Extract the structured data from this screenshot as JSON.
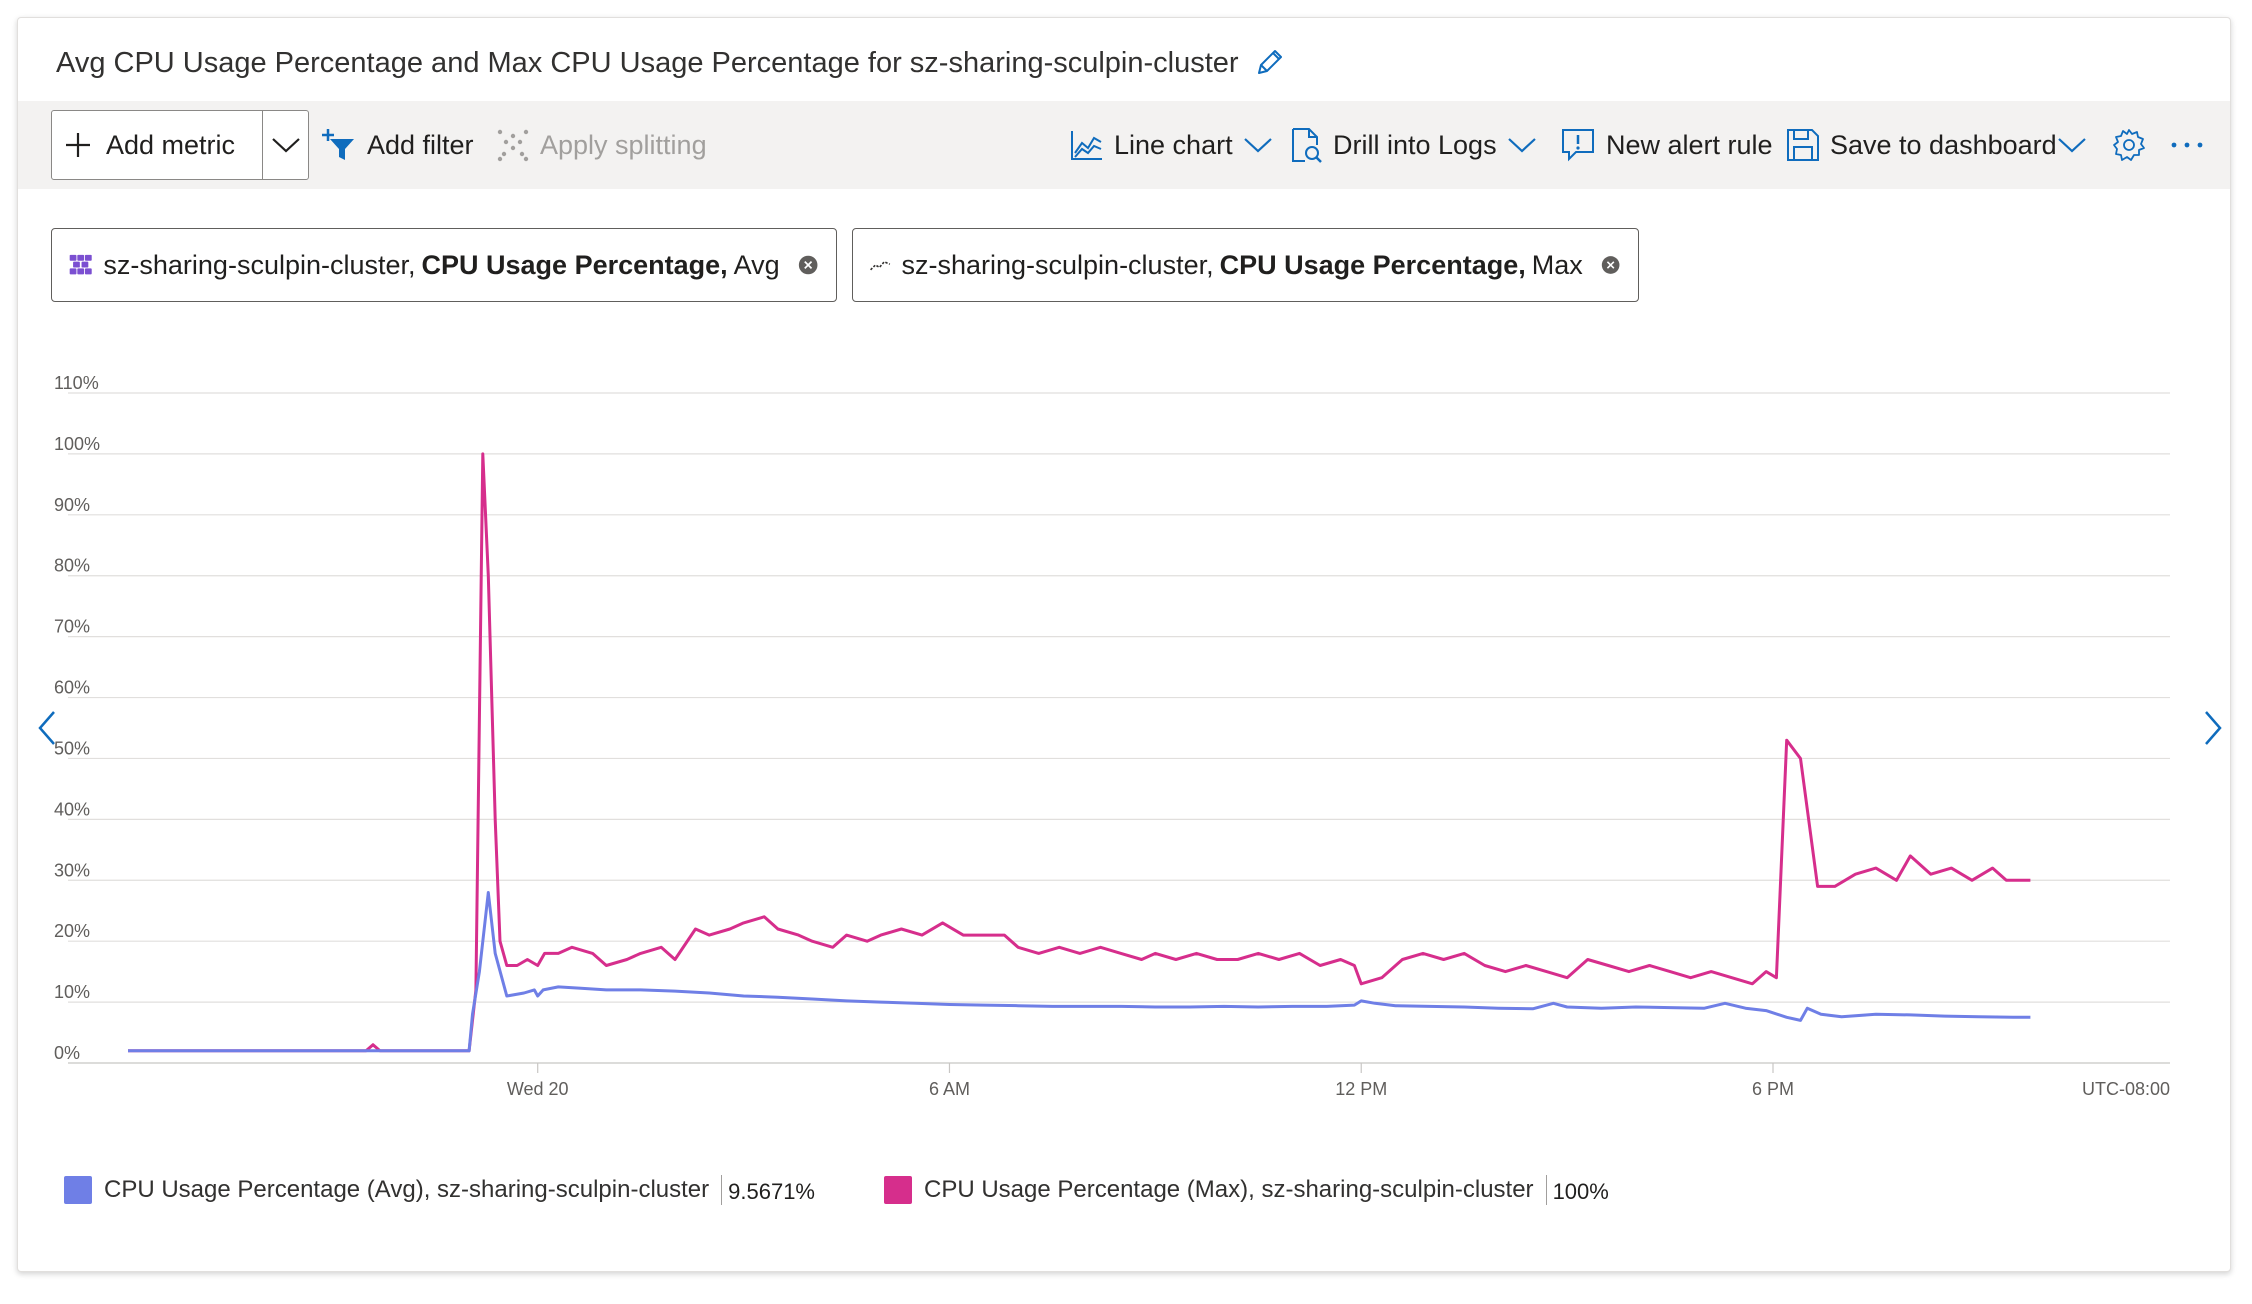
{
  "title": "Avg CPU Usage Percentage and Max CPU Usage Percentage for sz-sharing-sculpin-cluster",
  "toolbar": {
    "add_metric": "Add metric",
    "add_filter": "Add filter",
    "apply_splitting": "Apply splitting",
    "line_chart": "Line chart",
    "drill_into_logs": "Drill into Logs",
    "new_alert_rule": "New alert rule",
    "save_to_dashboard": "Save to dashboard"
  },
  "metric_pills": [
    {
      "resource": "sz-sharing-sculpin-cluster,",
      "metric": "CPU Usage Percentage,",
      "aggregation": "Avg"
    },
    {
      "resource": "sz-sharing-sculpin-cluster,",
      "metric": "CPU Usage Percentage,",
      "aggregation": "Max"
    }
  ],
  "timezone": "UTC-08:00",
  "legend": [
    {
      "label": "CPU Usage Percentage (Avg), sz-sharing-sculpin-cluster",
      "value": "9.5671%",
      "color": "#6f7fe6"
    },
    {
      "label": "CPU Usage Percentage (Max), sz-sharing-sculpin-cluster",
      "value": "100%",
      "color": "#d62e8c"
    }
  ],
  "chart_data": {
    "type": "line",
    "y_ticks": [
      "0%",
      "10%",
      "20%",
      "30%",
      "40%",
      "50%",
      "60%",
      "70%",
      "80%",
      "90%",
      "100%",
      "110%"
    ],
    "ylim": [
      0,
      110
    ],
    "x_unit": "hours since Wed 20 00:00 (UTC-08:00)",
    "xlim": [
      -5.97,
      23.1
    ],
    "x_ticks": [
      {
        "label": "Wed 20",
        "x": 0
      },
      {
        "label": "6 AM",
        "x": 6
      },
      {
        "label": "12 PM",
        "x": 12
      },
      {
        "label": "6 PM",
        "x": 18
      }
    ],
    "grid": true,
    "series": [
      {
        "name": "CPU Usage Percentage (Avg), sz-sharing-sculpin-cluster",
        "color": "#6f7fe6",
        "points": [
          [
            -5.97,
            2
          ],
          [
            -2.0,
            2
          ],
          [
            -1.45,
            2
          ],
          [
            -1.0,
            2
          ],
          [
            -0.95,
            8
          ],
          [
            -0.85,
            15
          ],
          [
            -0.72,
            28
          ],
          [
            -0.62,
            18
          ],
          [
            -0.45,
            11
          ],
          [
            -0.2,
            11.5
          ],
          [
            -0.05,
            12
          ],
          [
            0.0,
            11
          ],
          [
            0.08,
            12
          ],
          [
            0.3,
            12.5
          ],
          [
            0.6,
            12.3
          ],
          [
            1.0,
            12
          ],
          [
            1.5,
            12
          ],
          [
            2.0,
            11.8
          ],
          [
            2.5,
            11.5
          ],
          [
            3.0,
            11
          ],
          [
            3.5,
            10.8
          ],
          [
            4.0,
            10.5
          ],
          [
            4.5,
            10.2
          ],
          [
            5.0,
            10
          ],
          [
            5.5,
            9.8
          ],
          [
            6.0,
            9.6
          ],
          [
            6.5,
            9.5
          ],
          [
            7.0,
            9.4
          ],
          [
            7.5,
            9.3
          ],
          [
            8.0,
            9.3
          ],
          [
            8.5,
            9.3
          ],
          [
            9.0,
            9.2
          ],
          [
            9.5,
            9.2
          ],
          [
            10.0,
            9.3
          ],
          [
            10.5,
            9.2
          ],
          [
            11.0,
            9.3
          ],
          [
            11.5,
            9.3
          ],
          [
            11.9,
            9.5
          ],
          [
            12.0,
            10.2
          ],
          [
            12.2,
            9.8
          ],
          [
            12.5,
            9.4
          ],
          [
            13.0,
            9.3
          ],
          [
            13.5,
            9.2
          ],
          [
            14.0,
            9.0
          ],
          [
            14.5,
            8.9
          ],
          [
            14.8,
            9.8
          ],
          [
            15.0,
            9.2
          ],
          [
            15.5,
            9.0
          ],
          [
            16.0,
            9.2
          ],
          [
            16.5,
            9.1
          ],
          [
            17.0,
            9.0
          ],
          [
            17.3,
            9.8
          ],
          [
            17.6,
            9.0
          ],
          [
            17.9,
            8.6
          ],
          [
            18.2,
            7.5
          ],
          [
            18.4,
            7.0
          ],
          [
            18.5,
            9.0
          ],
          [
            18.7,
            8.0
          ],
          [
            19.0,
            7.6
          ],
          [
            19.5,
            8.0
          ],
          [
            20.0,
            7.9
          ],
          [
            20.5,
            7.7
          ],
          [
            21.0,
            7.6
          ],
          [
            21.5,
            7.5
          ],
          [
            21.75,
            7.5
          ]
        ]
      },
      {
        "name": "CPU Usage Percentage (Max), sz-sharing-sculpin-cluster",
        "color": "#d62e8c",
        "points": [
          [
            -5.97,
            2
          ],
          [
            -2.5,
            2
          ],
          [
            -2.4,
            3
          ],
          [
            -2.3,
            2
          ],
          [
            -1.0,
            2
          ],
          [
            -0.9,
            12
          ],
          [
            -0.8,
            100
          ],
          [
            -0.72,
            80
          ],
          [
            -0.62,
            40
          ],
          [
            -0.55,
            20
          ],
          [
            -0.45,
            16
          ],
          [
            -0.3,
            16
          ],
          [
            -0.15,
            17
          ],
          [
            0.0,
            16
          ],
          [
            0.1,
            18
          ],
          [
            0.3,
            18
          ],
          [
            0.5,
            19
          ],
          [
            0.8,
            18
          ],
          [
            1.0,
            16
          ],
          [
            1.3,
            17
          ],
          [
            1.5,
            18
          ],
          [
            1.8,
            19
          ],
          [
            2.0,
            17
          ],
          [
            2.3,
            22
          ],
          [
            2.5,
            21
          ],
          [
            2.8,
            22
          ],
          [
            3.0,
            23
          ],
          [
            3.3,
            24
          ],
          [
            3.5,
            22
          ],
          [
            3.8,
            21
          ],
          [
            4.0,
            20
          ],
          [
            4.3,
            19
          ],
          [
            4.5,
            21
          ],
          [
            4.8,
            20
          ],
          [
            5.0,
            21
          ],
          [
            5.3,
            22
          ],
          [
            5.6,
            21
          ],
          [
            5.9,
            23
          ],
          [
            6.2,
            21
          ],
          [
            6.5,
            21
          ],
          [
            6.8,
            21
          ],
          [
            7.0,
            19
          ],
          [
            7.3,
            18
          ],
          [
            7.6,
            19
          ],
          [
            7.9,
            18
          ],
          [
            8.2,
            19
          ],
          [
            8.5,
            18
          ],
          [
            8.8,
            17
          ],
          [
            9.0,
            18
          ],
          [
            9.3,
            17
          ],
          [
            9.6,
            18
          ],
          [
            9.9,
            17
          ],
          [
            10.2,
            17
          ],
          [
            10.5,
            18
          ],
          [
            10.8,
            17
          ],
          [
            11.1,
            18
          ],
          [
            11.4,
            16
          ],
          [
            11.7,
            17
          ],
          [
            11.9,
            16
          ],
          [
            12.0,
            13
          ],
          [
            12.3,
            14
          ],
          [
            12.6,
            17
          ],
          [
            12.9,
            18
          ],
          [
            13.2,
            17
          ],
          [
            13.5,
            18
          ],
          [
            13.8,
            16
          ],
          [
            14.1,
            15
          ],
          [
            14.4,
            16
          ],
          [
            14.7,
            15
          ],
          [
            15.0,
            14
          ],
          [
            15.3,
            17
          ],
          [
            15.6,
            16
          ],
          [
            15.9,
            15
          ],
          [
            16.2,
            16
          ],
          [
            16.5,
            15
          ],
          [
            16.8,
            14
          ],
          [
            17.1,
            15
          ],
          [
            17.4,
            14
          ],
          [
            17.7,
            13
          ],
          [
            17.9,
            15
          ],
          [
            18.05,
            14
          ],
          [
            18.2,
            53
          ],
          [
            18.4,
            50
          ],
          [
            18.65,
            29
          ],
          [
            18.9,
            29
          ],
          [
            19.2,
            31
          ],
          [
            19.5,
            32
          ],
          [
            19.8,
            30
          ],
          [
            20.0,
            34
          ],
          [
            20.3,
            31
          ],
          [
            20.6,
            32
          ],
          [
            20.9,
            30
          ],
          [
            21.2,
            32
          ],
          [
            21.4,
            30
          ],
          [
            21.75,
            30
          ]
        ]
      }
    ]
  }
}
